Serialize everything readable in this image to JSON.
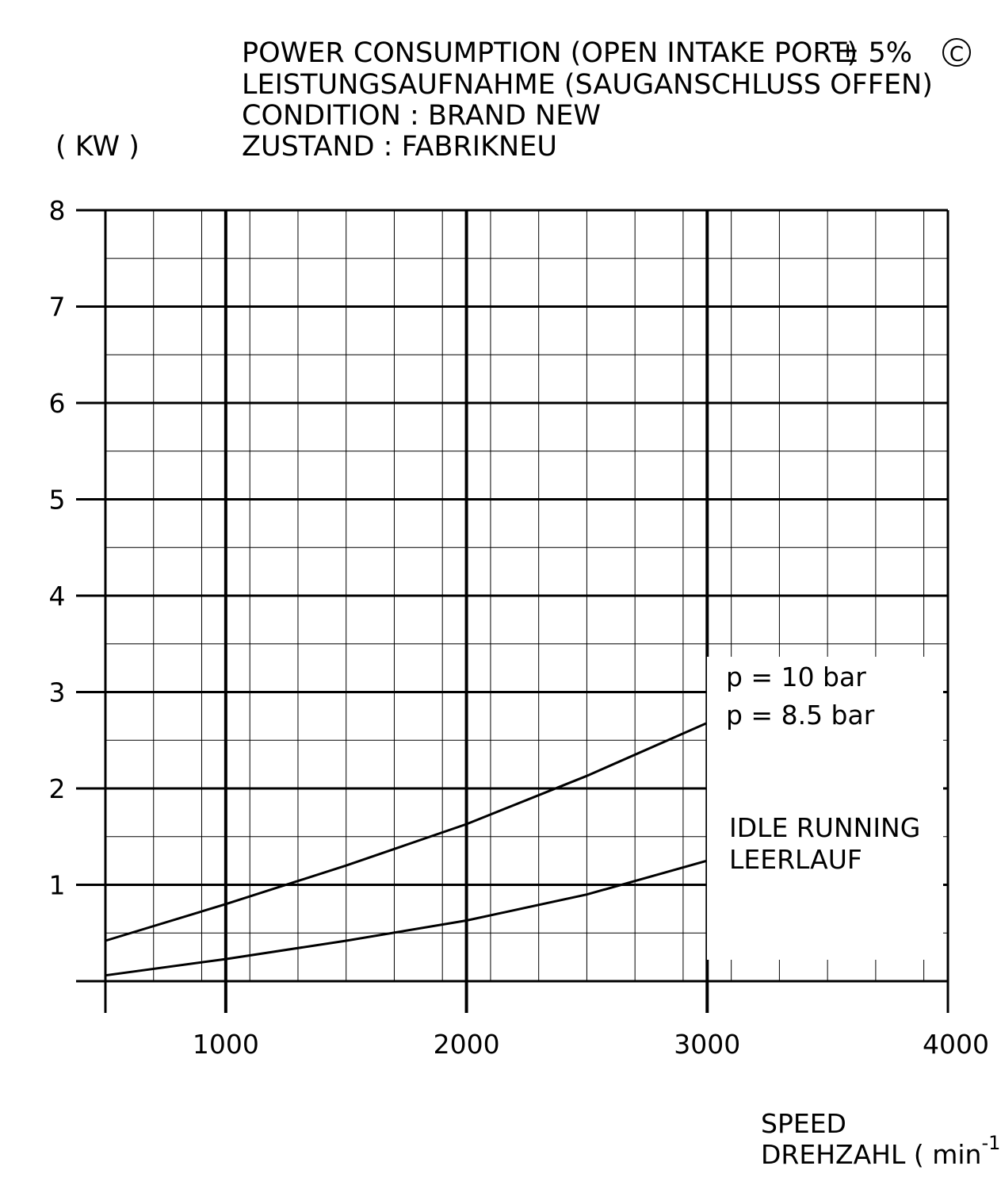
{
  "chart_data": {
    "type": "line",
    "title_lines": [
      "POWER CONSUMPTION (OPEN INTAKE PORT)",
      "LEISTUNGSAUFNAHME (SAUGANSCHLUSS OFFEN)",
      "CONDITION : BRAND NEW",
      "ZUSTAND : FABRIKNEU"
    ],
    "tolerance": "± 5%",
    "curve_mark": "C",
    "ylabel": "( KW )",
    "xlabel_lines": [
      "SPEED",
      "DREHZAHL ( min"
    ],
    "xlabel_exponent": "-1",
    "xlabel_close": ")",
    "xlim": [
      500,
      4000
    ],
    "ylim": [
      0,
      8
    ],
    "x_ticks": [
      1000,
      2000,
      3000,
      4000
    ],
    "y_ticks": [
      1,
      2,
      3,
      4,
      5,
      6,
      7,
      8
    ],
    "grid": true,
    "grid_minor": {
      "x_step": 200,
      "y_step": 0.5
    },
    "series": [
      {
        "name": "p = 10 bar / p = 8.5 bar",
        "label_lines": [
          "p = 10 bar",
          "p = 8.5 bar"
        ],
        "x": [
          500,
          1000,
          1500,
          2000,
          2500,
          3000
        ],
        "y": [
          0.42,
          0.8,
          1.2,
          1.63,
          2.13,
          2.68
        ]
      },
      {
        "name": "IDLE RUNNING / LEERLAUF",
        "label_lines": [
          "IDLE RUNNING",
          "LEERLAUF"
        ],
        "x": [
          500,
          1000,
          1500,
          2000,
          2500,
          3000
        ],
        "y": [
          0.06,
          0.23,
          0.42,
          0.63,
          0.9,
          1.25
        ]
      }
    ]
  }
}
